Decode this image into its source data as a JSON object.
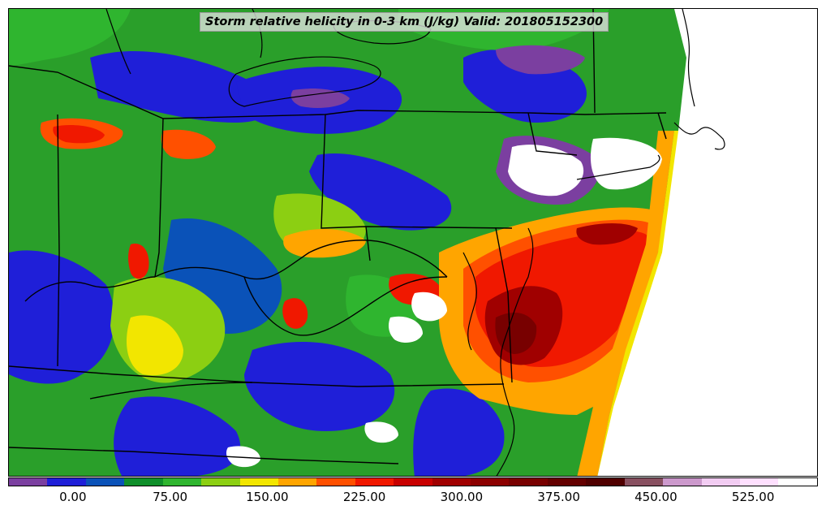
{
  "title": "Storm relative helicity in 0-3 km (J/kg) Valid: 201805152300",
  "map": {
    "variable": "Storm relative helicity 0-3 km",
    "units": "J/kg",
    "valid_time": "201805152300",
    "region": "Eastern United States (Ohio Valley, Mid-Atlantic, Northeast)",
    "boundaries": [
      "state-borders",
      "coastline",
      "great-lakes"
    ]
  },
  "colorbar": {
    "colors": [
      "#7b3fa0",
      "#1f1fd8",
      "#0a52b8",
      "#0f8f2a",
      "#2fb52f",
      "#8ccf12",
      "#f2e600",
      "#ffa500",
      "#ff5000",
      "#f01800",
      "#c80000",
      "#a00000",
      "#8c0000",
      "#780000",
      "#640000",
      "#500000",
      "#885060",
      "#cc99cc",
      "#f2ccf2",
      "#ffe0ff",
      "#ffffff"
    ],
    "tick_labels": [
      "0.00",
      "75.00",
      "150.00",
      "225.00",
      "300.00",
      "375.00",
      "450.00",
      "525.00"
    ],
    "tick_values": [
      0,
      75,
      150,
      225,
      300,
      375,
      450,
      525
    ],
    "vmin": -50,
    "vmax": 575
  }
}
